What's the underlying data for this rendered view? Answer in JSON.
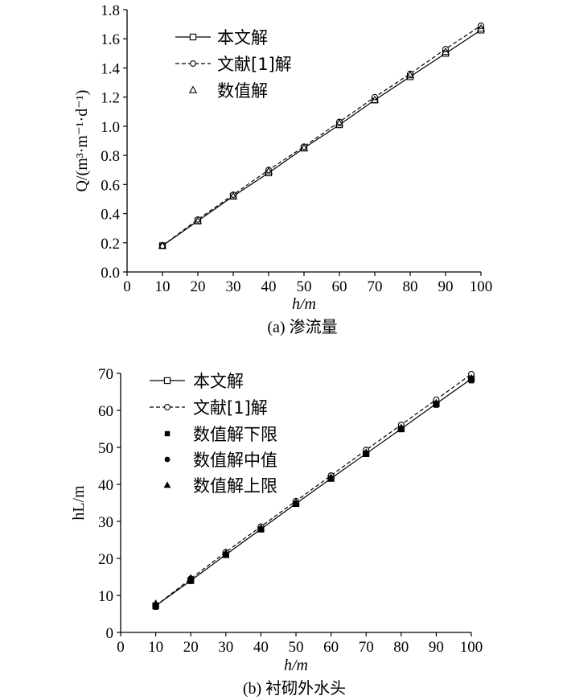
{
  "chart_data": [
    {
      "type": "line",
      "caption": "(a) 渗流量",
      "xlabel": "h/m",
      "ylabel": "Q/(m³·m⁻¹·d⁻¹)",
      "xlim": [
        0,
        100
      ],
      "ylim": [
        0,
        1.8
      ],
      "xticks": [
        "0",
        "10",
        "20",
        "30",
        "40",
        "50",
        "60",
        "70",
        "80",
        "90",
        "100"
      ],
      "yticks": [
        "0.0",
        "0.2",
        "0.4",
        "0.6",
        "0.8",
        "1.0",
        "1.2",
        "1.4",
        "1.6",
        "1.8"
      ],
      "grid": false,
      "legend_position": "top-left",
      "x": [
        10,
        20,
        30,
        40,
        50,
        60,
        70,
        80,
        90,
        100
      ],
      "series": [
        {
          "name": "本文解",
          "style": "solid-square",
          "values": [
            0.18,
            0.35,
            0.52,
            0.68,
            0.85,
            1.01,
            1.18,
            1.34,
            1.5,
            1.66
          ]
        },
        {
          "name": "文献[1]解",
          "style": "dashed-circle",
          "values": [
            0.18,
            0.36,
            0.53,
            0.7,
            0.86,
            1.03,
            1.2,
            1.36,
            1.53,
            1.69
          ]
        },
        {
          "name": "数值解",
          "style": "triangle-open",
          "values": [
            0.18,
            0.35,
            0.52,
            0.69,
            0.85,
            1.02,
            1.18,
            1.35,
            1.51,
            1.67
          ]
        }
      ]
    },
    {
      "type": "line",
      "caption": "(b) 衬砌外水头",
      "xlabel": "h/m",
      "ylabel": "hL/m",
      "xlim": [
        0,
        100
      ],
      "ylim": [
        0,
        70
      ],
      "xticks": [
        "0",
        "10",
        "20",
        "30",
        "40",
        "50",
        "60",
        "70",
        "80",
        "90",
        "100"
      ],
      "yticks": [
        "0",
        "10",
        "20",
        "30",
        "40",
        "50",
        "60",
        "70"
      ],
      "grid": false,
      "legend_position": "top-left",
      "x": [
        10,
        20,
        30,
        40,
        50,
        60,
        70,
        80,
        90,
        100
      ],
      "series": [
        {
          "name": "本文解",
          "style": "solid-square",
          "values": [
            7.2,
            14.0,
            21.0,
            27.9,
            34.8,
            41.6,
            48.3,
            55.0,
            61.8,
            68.5
          ]
        },
        {
          "name": "文献[1]解",
          "style": "dashed-circle",
          "values": [
            7.2,
            14.5,
            21.7,
            28.6,
            35.5,
            42.4,
            49.3,
            56.1,
            62.9,
            69.8
          ]
        },
        {
          "name": "数值解下限",
          "style": "square-filled",
          "values": [
            6.8,
            13.8,
            20.9,
            27.8,
            34.7,
            41.5,
            48.1,
            54.8,
            61.4,
            68.0
          ]
        },
        {
          "name": "数值解中值",
          "style": "circle-filled",
          "values": [
            7.4,
            14.2,
            21.2,
            28.1,
            35.0,
            41.8,
            48.5,
            55.2,
            61.9,
            68.6
          ]
        },
        {
          "name": "数值解上限",
          "style": "triangle-filled",
          "values": [
            7.9,
            14.8,
            21.5,
            28.3,
            35.2,
            42.0,
            48.7,
            55.4,
            62.1,
            68.8
          ]
        }
      ]
    }
  ]
}
